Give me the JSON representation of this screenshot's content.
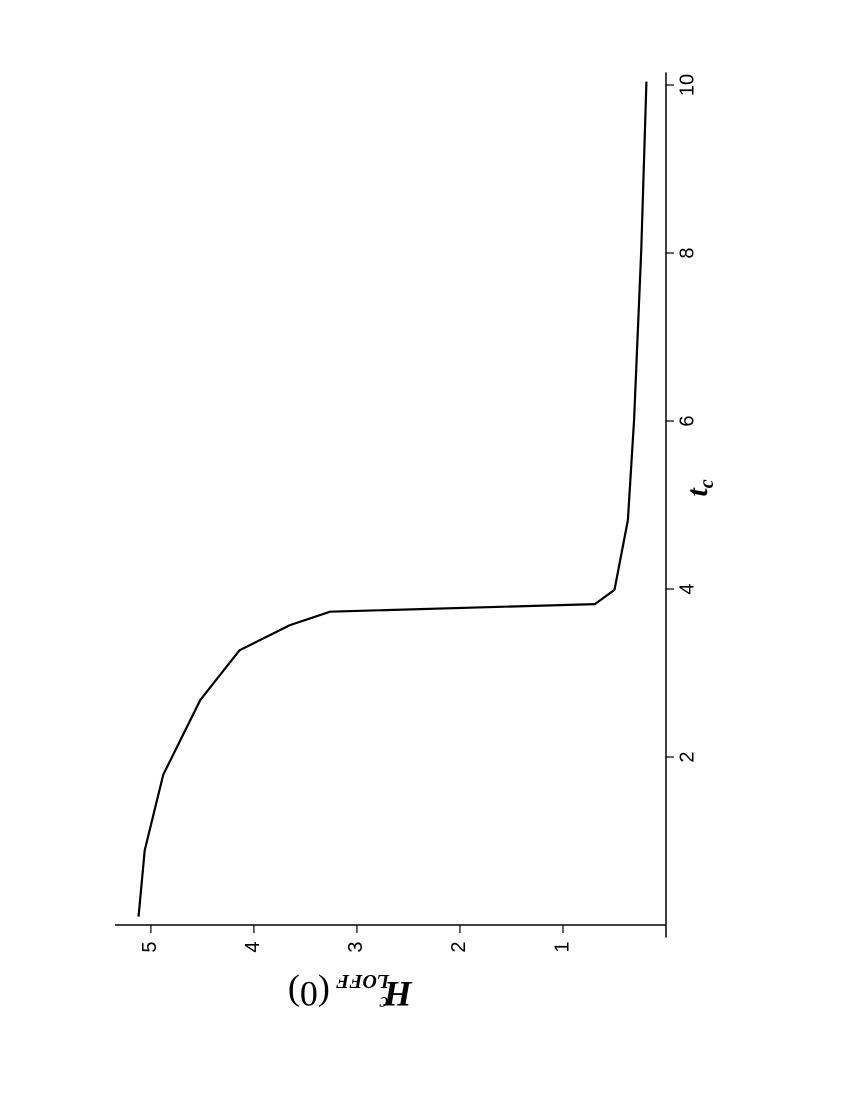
{
  "chart_data": {
    "type": "line",
    "xlabel": [
      "t",
      "c"
    ],
    "ylabel": [
      "H",
      "c",
      "LOFF",
      "(0)"
    ],
    "x": [
      0.1,
      0.89,
      1.79,
      2.68,
      3.27,
      3.57,
      3.73,
      3.82,
      3.99,
      4.82,
      6.01,
      8.04,
      10.04
    ],
    "series": [
      {
        "color": "#000000",
        "values": [
          5.12,
          5.06,
          4.88,
          4.52,
          4.14,
          3.65,
          3.26,
          0.69,
          0.5,
          0.37,
          0.31,
          0.24,
          0.19
        ]
      }
    ],
    "xlim": [
      -0.15,
      10.15
    ],
    "xticks": [
      2,
      4,
      6,
      8,
      10
    ],
    "ylim": [
      0,
      5.3
    ],
    "yticks": [
      1,
      2,
      3,
      4,
      5
    ]
  }
}
